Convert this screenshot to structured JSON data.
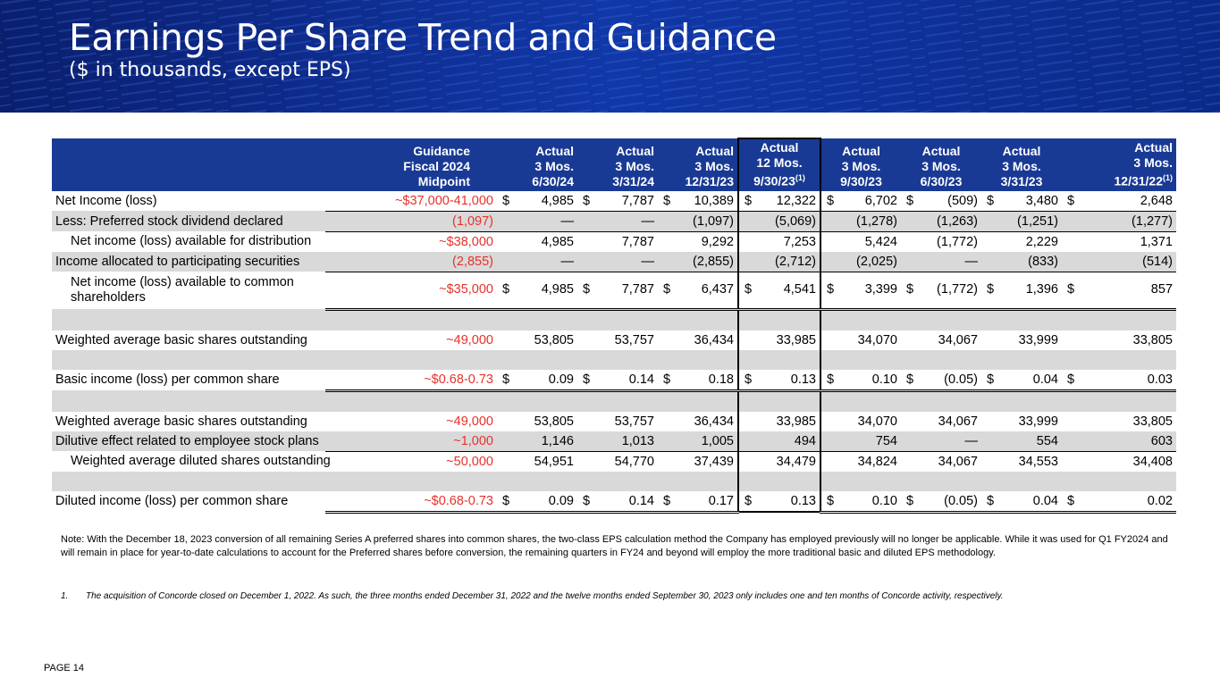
{
  "header": {
    "title": "Earnings Per Share Trend and Guidance",
    "subtitle": "($ in thousands, except EPS)"
  },
  "colors": {
    "banner": "#0c2a8a",
    "table_header": "#193a94",
    "guidance_text": "#e8312a",
    "shade": "#d9d9d9"
  },
  "table": {
    "columns": [
      {
        "l1": "Guidance",
        "l2": "Fiscal 2024",
        "l3": "Midpoint",
        "sup": ""
      },
      {
        "l1": "Actual",
        "l2": "3 Mos.",
        "l3": "6/30/24",
        "sup": ""
      },
      {
        "l1": "Actual",
        "l2": "3 Mos.",
        "l3": "3/31/24",
        "sup": ""
      },
      {
        "l1": "Actual",
        "l2": "3 Mos.",
        "l3": "12/31/23",
        "sup": ""
      },
      {
        "l1": "Actual",
        "l2": "12 Mos.",
        "l3": "9/30/23",
        "sup": "(1)"
      },
      {
        "l1": "Actual",
        "l2": "3 Mos.",
        "l3": "9/30/23",
        "sup": ""
      },
      {
        "l1": "Actual",
        "l2": "3 Mos.",
        "l3": "6/30/23",
        "sup": ""
      },
      {
        "l1": "Actual",
        "l2": "3 Mos.",
        "l3": "3/31/23",
        "sup": ""
      },
      {
        "l1": "Actual",
        "l2": "3 Mos.",
        "l3": "12/31/22",
        "sup": "(1)"
      }
    ],
    "rows": [
      {
        "label": "Net Income (loss)",
        "guidance": "~$37,000-41,000",
        "dollar": "$",
        "values": [
          "4,985",
          "7,787",
          "10,389",
          "12,322",
          "6,702",
          "(509)",
          "3,480",
          "2,648"
        ]
      },
      {
        "label": "Less: Preferred stock dividend declared",
        "guidance": "(1,097)",
        "dollar": "",
        "values": [
          "—",
          "—",
          "(1,097)",
          "(5,069)",
          "(1,278)",
          "(1,263)",
          "(1,251)",
          "(1,277)"
        ]
      },
      {
        "label": "Net income (loss) available for distribution",
        "guidance": "~$38,000",
        "dollar": "",
        "values": [
          "4,985",
          "7,787",
          "9,292",
          "7,253",
          "5,424",
          "(1,772)",
          "2,229",
          "1,371"
        ]
      },
      {
        "label": "Income allocated to participating securities",
        "guidance": "(2,855)",
        "dollar": "",
        "values": [
          "—",
          "—",
          "(2,855)",
          "(2,712)",
          "(2,025)",
          "—",
          "(833)",
          "(514)"
        ]
      },
      {
        "label_l1": "Net income (loss) available to common",
        "label_l2": "shareholders",
        "guidance": "~$35,000",
        "dollar": "$",
        "values": [
          "4,985",
          "7,787",
          "6,437",
          "4,541",
          "3,399",
          "(1,772)",
          "1,396",
          "857"
        ]
      },
      {
        "label": "Weighted average basic shares outstanding",
        "guidance": "~49,000",
        "dollar": "",
        "values": [
          "53,805",
          "53,757",
          "36,434",
          "33,985",
          "34,070",
          "34,067",
          "33,999",
          "33,805"
        ]
      },
      {
        "label": "Basic income (loss) per common share",
        "guidance": "~$0.68-0.73",
        "dollar": "$",
        "values": [
          "0.09",
          "0.14",
          "0.18",
          "0.13",
          "0.10",
          "(0.05)",
          "0.04",
          "0.03"
        ]
      },
      {
        "label": "Weighted average basic shares outstanding",
        "guidance": "~49,000",
        "dollar": "",
        "values": [
          "53,805",
          "53,757",
          "36,434",
          "33,985",
          "34,070",
          "34,067",
          "33,999",
          "33,805"
        ]
      },
      {
        "label": "Dilutive effect related to employee stock plans",
        "guidance": "~1,000",
        "dollar": "",
        "values": [
          "1,146",
          "1,013",
          "1,005",
          "494",
          "754",
          "—",
          "554",
          "603"
        ]
      },
      {
        "label": "Weighted average diluted shares outstanding",
        "guidance": "~50,000",
        "dollar": "",
        "values": [
          "54,951",
          "54,770",
          "37,439",
          "34,479",
          "34,824",
          "34,067",
          "34,553",
          "34,408"
        ]
      },
      {
        "label": "Diluted income (loss) per common share",
        "guidance": "~$0.68-0.73",
        "dollar": "$",
        "values": [
          "0.09",
          "0.14",
          "0.17",
          "0.13",
          "0.10",
          "(0.05)",
          "0.04",
          "0.02"
        ]
      }
    ]
  },
  "note": "Note: With the December 18, 2023 conversion of all remaining Series A preferred shares into common shares, the two-class EPS calculation method the Company has employed previously will no longer be applicable. While it was used for Q1 FY2024 and will remain in place for year-to-date calculations to account for the Preferred shares before conversion, the remaining quarters in FY24 and beyond will employ the more traditional basic and diluted EPS methodology.",
  "footnote": {
    "number": "1.",
    "text": "The acquisition of Concorde closed on December 1, 2022. As such, the three months ended December 31, 2022 and the twelve months ended September 30, 2023 only includes one and ten months of Concorde activity, respectively."
  },
  "page_label": "PAGE 14"
}
